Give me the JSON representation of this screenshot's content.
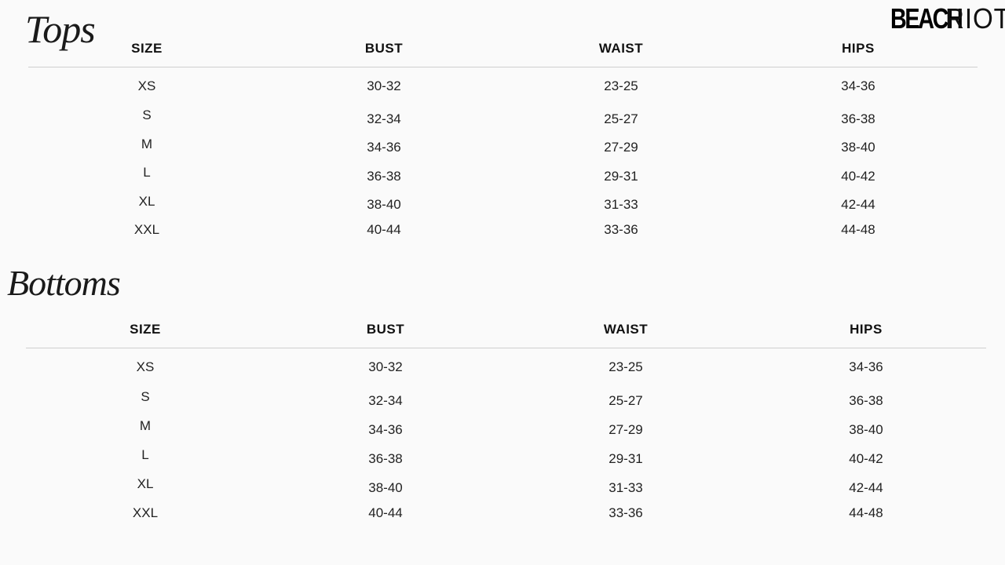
{
  "logo": {
    "bold": "BEACH",
    "light": "RIOT"
  },
  "tables": [
    {
      "title": "Tops",
      "headers": [
        "SIZE",
        "BUST",
        "WAIST",
        "HIPS"
      ],
      "rows": [
        [
          "XS",
          "30-32",
          "23-25",
          "34-36"
        ],
        [
          "S",
          "32-34",
          "25-27",
          "36-38"
        ],
        [
          "M",
          "34-36",
          "27-29",
          "38-40"
        ],
        [
          "L",
          "36-38",
          "29-31",
          "40-42"
        ],
        [
          "XL",
          "38-40",
          "31-33",
          "42-44"
        ],
        [
          "XXL",
          "40-44",
          "33-36",
          "44-48"
        ]
      ]
    },
    {
      "title": "Bottoms",
      "headers": [
        "SIZE",
        "BUST",
        "WAIST",
        "HIPS"
      ],
      "rows": [
        [
          "XS",
          "30-32",
          "23-25",
          "34-36"
        ],
        [
          "S",
          "32-34",
          "25-27",
          "36-38"
        ],
        [
          "M",
          "34-36",
          "27-29",
          "38-40"
        ],
        [
          "L",
          "36-38",
          "29-31",
          "40-42"
        ],
        [
          "XL",
          "38-40",
          "31-33",
          "42-44"
        ],
        [
          "XXL",
          "40-44",
          "33-36",
          "44-48"
        ]
      ]
    }
  ]
}
